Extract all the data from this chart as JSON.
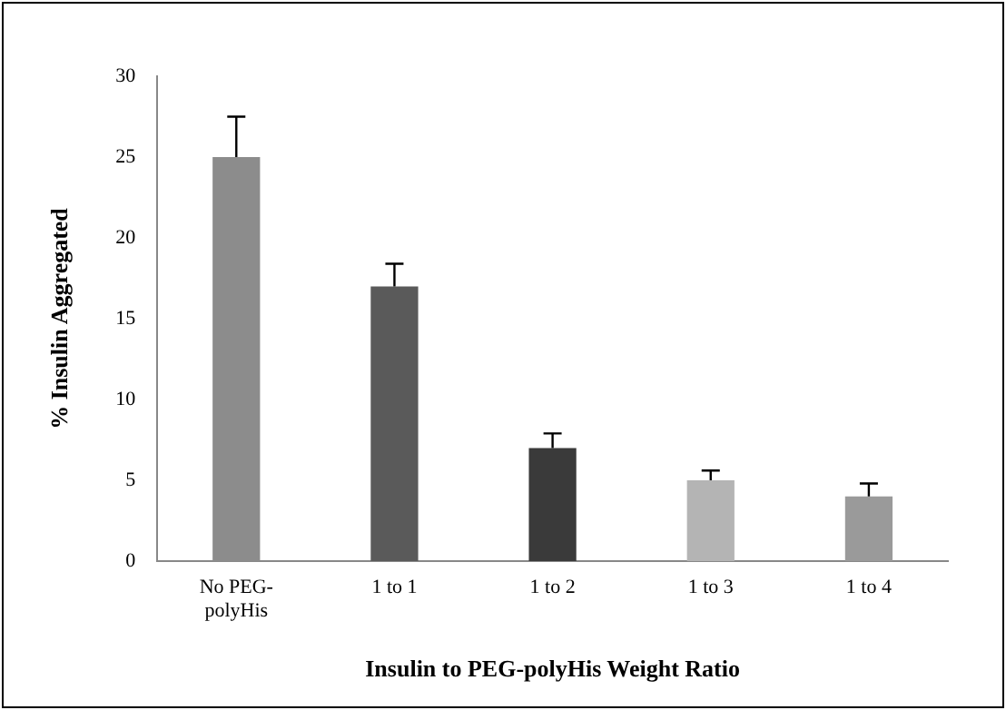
{
  "chart_data": {
    "type": "bar",
    "xlabel": "Insulin to PEG-polyHis Weight Ratio",
    "ylabel": "% Insulin Aggregated",
    "categories": [
      "No PEG-polyHis",
      "1 to 1",
      "1 to 2",
      "1 to 3",
      "1 to 4"
    ],
    "values": [
      25,
      17,
      7,
      5,
      4
    ],
    "errors": [
      [
        25,
        27.5
      ],
      [
        17,
        18.4
      ],
      [
        7,
        7.9
      ],
      [
        5,
        5.6
      ],
      [
        4,
        4.8
      ]
    ],
    "colors": [
      "#8c8c8c",
      "#5a5a5a",
      "#3a3a3a",
      "#b4b4b4",
      "#9a9a9a"
    ],
    "ylim": [
      0,
      30
    ],
    "yticks": [
      0,
      5,
      10,
      15,
      20,
      25,
      30
    ],
    "grid": false,
    "legend": false
  }
}
